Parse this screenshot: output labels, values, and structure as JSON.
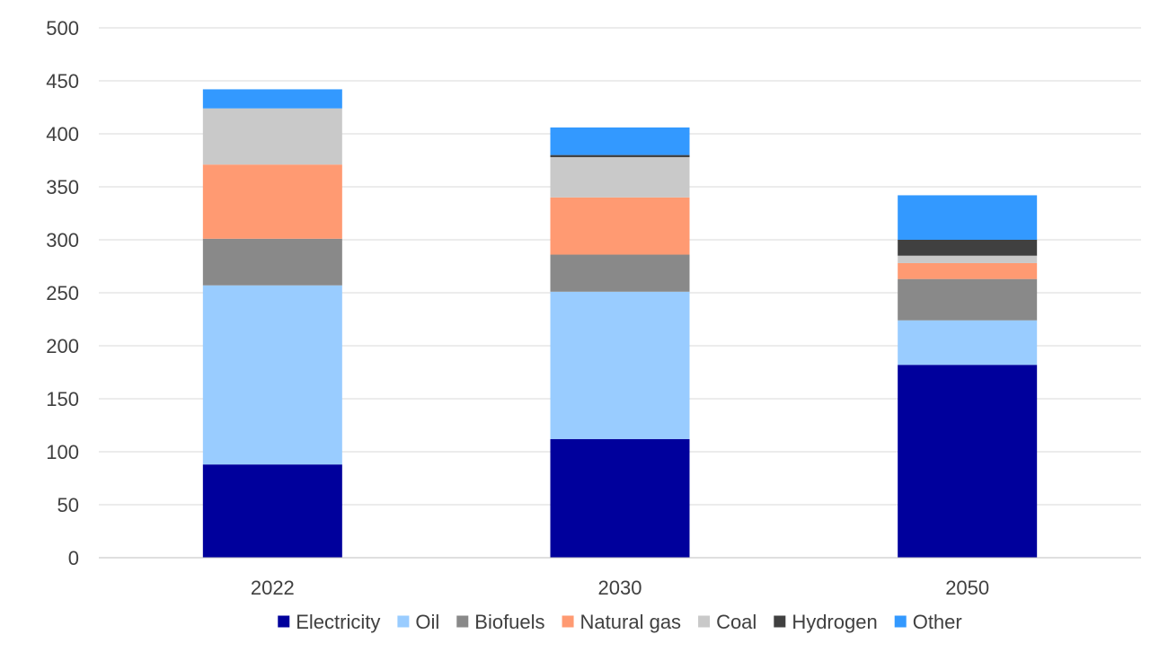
{
  "chart_data": {
    "type": "bar",
    "stacked": true,
    "categories": [
      "2022",
      "2030",
      "2050"
    ],
    "ylim": [
      0,
      500
    ],
    "yticks": [
      0,
      50,
      100,
      150,
      200,
      250,
      300,
      350,
      400,
      450,
      500
    ],
    "grid": true,
    "legend": "bottom",
    "title": "",
    "xlabel": "",
    "ylabel": "",
    "series": [
      {
        "name": "Electricity",
        "color": "#00009C",
        "values": [
          88,
          112,
          182
        ]
      },
      {
        "name": "Oil",
        "color": "#99CCFF",
        "values": [
          169,
          139,
          42
        ]
      },
      {
        "name": "Biofuels",
        "color": "#898989",
        "values": [
          44,
          35,
          39
        ]
      },
      {
        "name": "Natural gas",
        "color": "#FF9A72",
        "values": [
          70,
          54,
          15
        ]
      },
      {
        "name": "Coal",
        "color": "#C9C9C9",
        "values": [
          53,
          38,
          7
        ]
      },
      {
        "name": "Hydrogen",
        "color": "#404040",
        "values": [
          0,
          2,
          15
        ]
      },
      {
        "name": "Other",
        "color": "#3399FF",
        "values": [
          18,
          26,
          42
        ]
      }
    ]
  }
}
